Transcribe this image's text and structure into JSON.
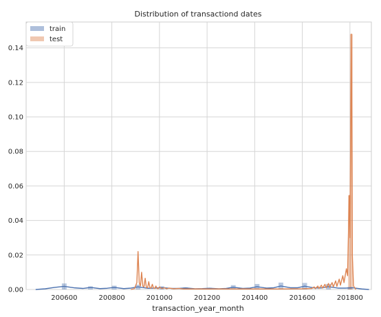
{
  "chart_data": {
    "type": "histogram+kde",
    "title": "Distribution of transactiond dates",
    "xlabel": "transaction_year_month",
    "ylabel": "",
    "xlim": [
      200440,
      201890
    ],
    "ylim": [
      0,
      0.155
    ],
    "xticks": [
      200600,
      200800,
      201000,
      201200,
      201400,
      201600,
      201800
    ],
    "yticks": [
      0.0,
      0.02,
      0.04,
      0.06,
      0.08,
      0.1,
      0.12,
      0.14
    ],
    "ytick_labels": [
      "0.00",
      "0.02",
      "0.04",
      "0.06",
      "0.08",
      "0.10",
      "0.12",
      "0.14"
    ],
    "grid": true,
    "legend_position": "top-left",
    "series": [
      {
        "name": "train",
        "color": "#4c72b0",
        "bin_width": 20,
        "bars": [
          {
            "x": 200600,
            "height": 0.0035
          },
          {
            "x": 200710,
            "height": 0.0018
          },
          {
            "x": 200810,
            "height": 0.0022
          },
          {
            "x": 200910,
            "height": 0.0028
          },
          {
            "x": 201010,
            "height": 0.0018
          },
          {
            "x": 201110,
            "height": 0.0012
          },
          {
            "x": 201210,
            "height": 0.001
          },
          {
            "x": 201310,
            "height": 0.0025
          },
          {
            "x": 201410,
            "height": 0.0032
          },
          {
            "x": 201510,
            "height": 0.004
          },
          {
            "x": 201610,
            "height": 0.0038
          },
          {
            "x": 201710,
            "height": 0.0032
          },
          {
            "x": 201800,
            "height": 0.0015
          }
        ],
        "kde": [
          [
            200480,
            0.0
          ],
          [
            200520,
            0.0004
          ],
          [
            200560,
            0.0012
          ],
          [
            200600,
            0.0018
          ],
          [
            200640,
            0.001
          ],
          [
            200680,
            0.0006
          ],
          [
            200710,
            0.0012
          ],
          [
            200750,
            0.0005
          ],
          [
            200780,
            0.0007
          ],
          [
            200810,
            0.0012
          ],
          [
            200850,
            0.0005
          ],
          [
            200880,
            0.0008
          ],
          [
            200910,
            0.0015
          ],
          [
            200950,
            0.0007
          ],
          [
            200980,
            0.0008
          ],
          [
            201010,
            0.0011
          ],
          [
            201050,
            0.0006
          ],
          [
            201080,
            0.0006
          ],
          [
            201110,
            0.0009
          ],
          [
            201150,
            0.0004
          ],
          [
            201180,
            0.0005
          ],
          [
            201210,
            0.0007
          ],
          [
            201250,
            0.0004
          ],
          [
            201280,
            0.0006
          ],
          [
            201310,
            0.0013
          ],
          [
            201350,
            0.0006
          ],
          [
            201380,
            0.0008
          ],
          [
            201410,
            0.0016
          ],
          [
            201450,
            0.0008
          ],
          [
            201480,
            0.001
          ],
          [
            201510,
            0.002
          ],
          [
            201550,
            0.001
          ],
          [
            201580,
            0.001
          ],
          [
            201610,
            0.0019
          ],
          [
            201650,
            0.0009
          ],
          [
            201680,
            0.0009
          ],
          [
            201710,
            0.0016
          ],
          [
            201750,
            0.0008
          ],
          [
            201780,
            0.0008
          ],
          [
            201810,
            0.001
          ],
          [
            201850,
            0.0003
          ],
          [
            201880,
            0.0
          ]
        ]
      },
      {
        "name": "test",
        "color": "#dd8452",
        "bin_width": 12,
        "bars": [
          {
            "x": 201798,
            "height": 0.0545
          },
          {
            "x": 201806,
            "height": 0.148
          }
        ],
        "kde": [
          [
            200880,
            0.0
          ],
          [
            200895,
            0.0005
          ],
          [
            200905,
            0.004
          ],
          [
            200910,
            0.022
          ],
          [
            200915,
            0.004
          ],
          [
            200920,
            0.002
          ],
          [
            200925,
            0.01
          ],
          [
            200930,
            0.002
          ],
          [
            200935,
            0.0015
          ],
          [
            200940,
            0.0065
          ],
          [
            200945,
            0.0012
          ],
          [
            200950,
            0.001
          ],
          [
            200955,
            0.0045
          ],
          [
            200960,
            0.001
          ],
          [
            200965,
            0.0008
          ],
          [
            200970,
            0.003
          ],
          [
            200975,
            0.0008
          ],
          [
            200980,
            0.0006
          ],
          [
            200985,
            0.002
          ],
          [
            200990,
            0.0006
          ],
          [
            200995,
            0.0005
          ],
          [
            201000,
            0.0015
          ],
          [
            201010,
            0.0005
          ],
          [
            201020,
            0.001
          ],
          [
            201030,
            0.0004
          ],
          [
            201040,
            0.0008
          ],
          [
            201060,
            0.0004
          ],
          [
            201080,
            0.0006
          ],
          [
            201100,
            0.0003
          ],
          [
            201150,
            0.0003
          ],
          [
            201200,
            0.0003
          ],
          [
            201250,
            0.0003
          ],
          [
            201300,
            0.0003
          ],
          [
            201400,
            0.0003
          ],
          [
            201500,
            0.0003
          ],
          [
            201600,
            0.0004
          ],
          [
            201640,
            0.0006
          ],
          [
            201650,
            0.0015
          ],
          [
            201655,
            0.0005
          ],
          [
            201665,
            0.002
          ],
          [
            201670,
            0.0006
          ],
          [
            201680,
            0.0025
          ],
          [
            201685,
            0.0008
          ],
          [
            201695,
            0.003
          ],
          [
            201700,
            0.001
          ],
          [
            201710,
            0.0035
          ],
          [
            201715,
            0.0012
          ],
          [
            201725,
            0.004
          ],
          [
            201730,
            0.0015
          ],
          [
            201740,
            0.005
          ],
          [
            201745,
            0.0018
          ],
          [
            201755,
            0.006
          ],
          [
            201760,
            0.0025
          ],
          [
            201770,
            0.008
          ],
          [
            201775,
            0.004
          ],
          [
            201785,
            0.012
          ],
          [
            201790,
            0.008
          ],
          [
            201797,
            0.0545
          ],
          [
            201800,
            0.03
          ],
          [
            201806,
            0.148
          ],
          [
            201810,
            0.02
          ],
          [
            201815,
            0.002
          ],
          [
            201825,
            0.0
          ]
        ]
      }
    ]
  }
}
